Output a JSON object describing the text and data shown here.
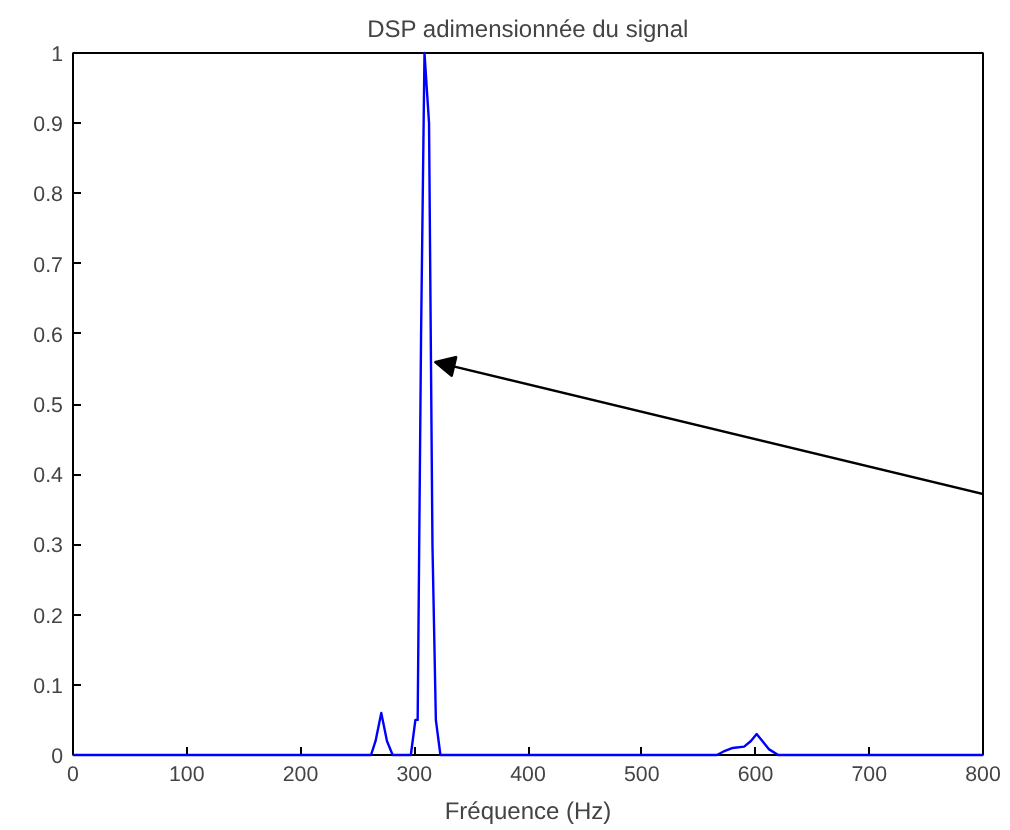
{
  "chart_data": {
    "type": "line",
    "title": "DSP adimensionnée du signal",
    "xlabel": "Fréquence (Hz)",
    "series": [
      {
        "color": "#0000ff",
        "x": [
          0,
          100,
          200,
          262,
          266,
          271,
          276,
          281,
          292,
          297,
          301,
          303,
          306,
          309,
          313,
          316,
          319,
          323,
          330,
          400,
          500,
          566,
          572,
          580,
          590,
          596,
          601,
          606,
          612,
          620,
          700,
          800
        ],
        "values": [
          0,
          0,
          0,
          0,
          0.02,
          0.06,
          0.02,
          0,
          0,
          0,
          0.05,
          0.05,
          0.6,
          1.0,
          0.9,
          0.3,
          0.05,
          0,
          0,
          0,
          0,
          0,
          0.005,
          0.01,
          0.012,
          0.02,
          0.03,
          0.02,
          0.008,
          0,
          0,
          0
        ]
      }
    ],
    "xlim": [
      0,
      800
    ],
    "ylim": [
      0,
      1
    ],
    "xticks": [
      0,
      100,
      200,
      300,
      400,
      500,
      600,
      700,
      800
    ],
    "yticks": [
      0,
      0.1,
      0.2,
      0.3,
      0.4,
      0.5,
      0.6,
      0.7,
      0.8,
      0.9,
      1
    ],
    "grid": false,
    "marker": "none",
    "line_style": "solid"
  }
}
